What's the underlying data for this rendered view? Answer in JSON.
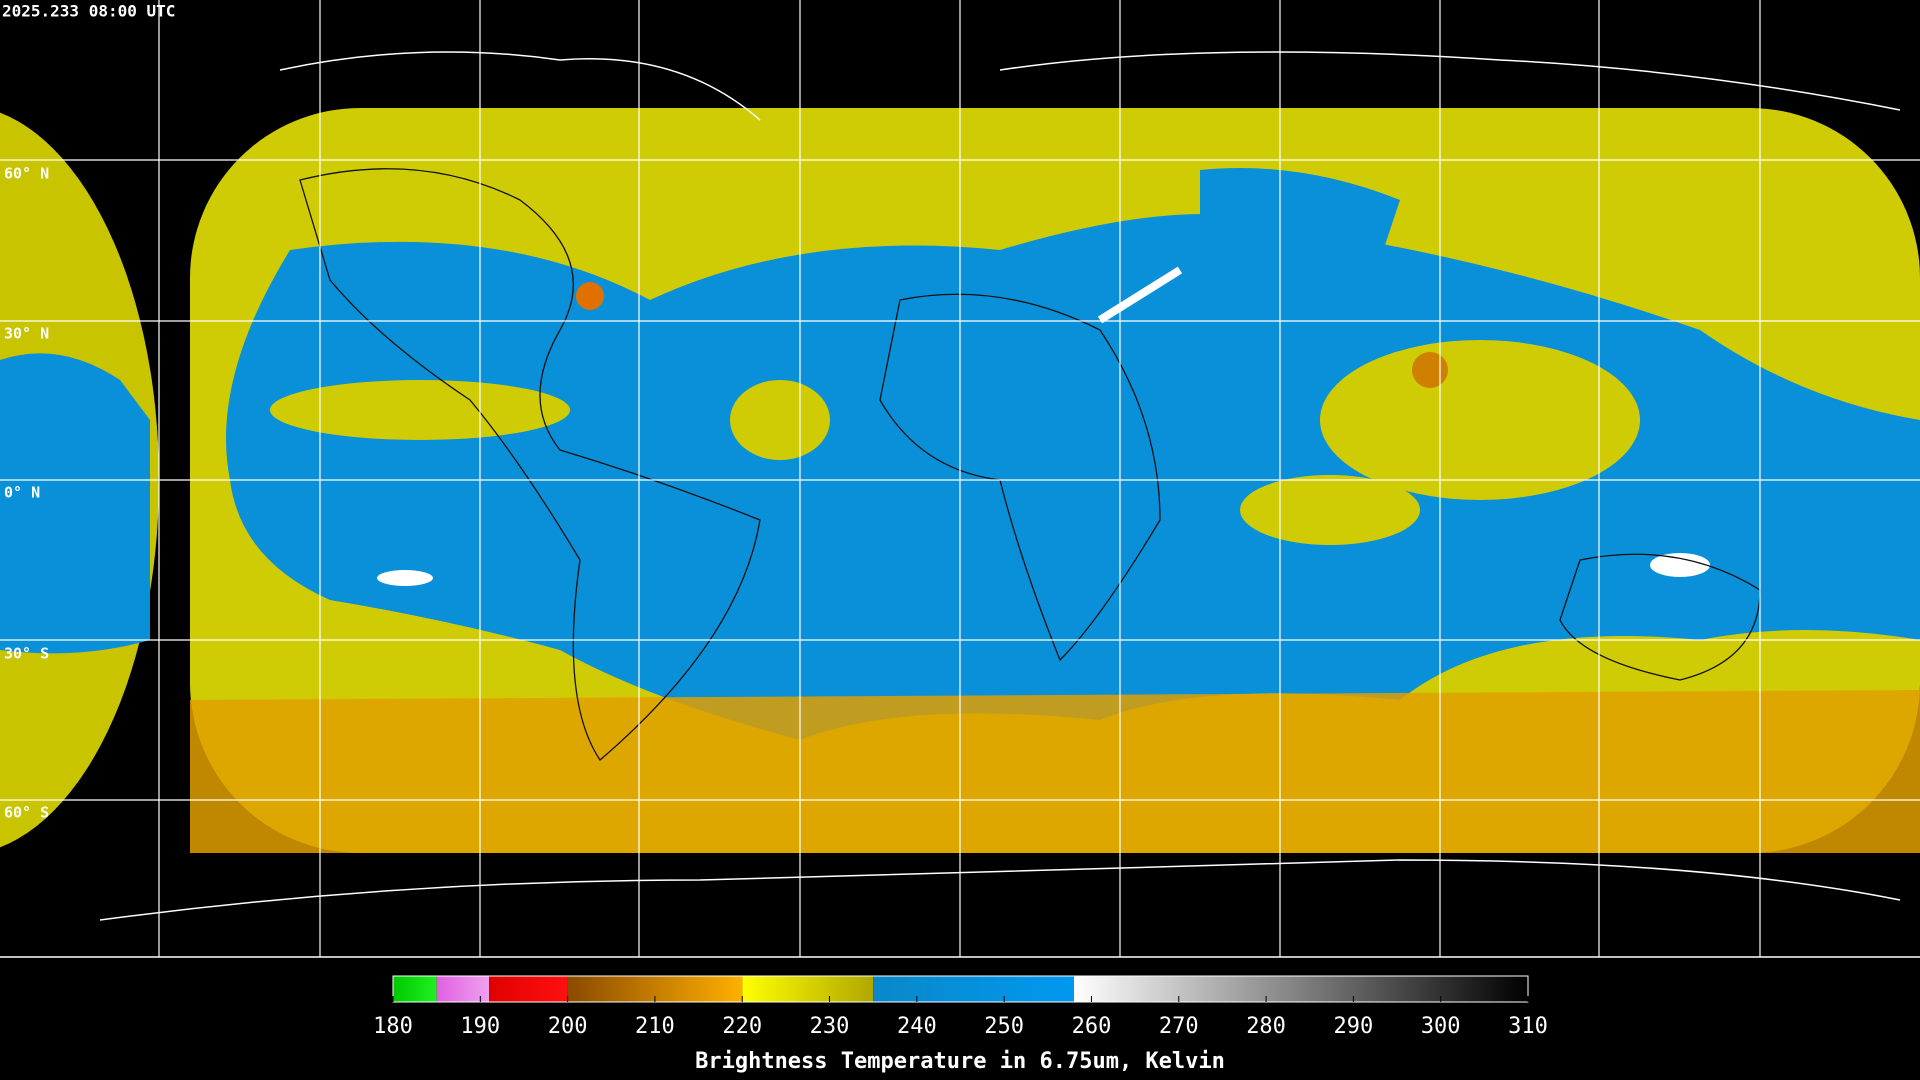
{
  "header": {
    "title": "2025.233 08:00 UTC"
  },
  "map": {
    "latitude_labels": [
      "60° N",
      "30° N",
      "0° N",
      "30° S",
      "60° S"
    ]
  },
  "colorbar": {
    "range": [
      180,
      310
    ],
    "ticks": [
      180,
      190,
      200,
      210,
      220,
      230,
      240,
      250,
      260,
      270,
      280,
      290,
      300,
      310
    ],
    "segments": [
      {
        "from": 180,
        "to": 185,
        "colors": [
          "#00c800",
          "#20f020"
        ]
      },
      {
        "from": 185,
        "to": 191,
        "colors": [
          "#e060e0",
          "#f0a0f0"
        ]
      },
      {
        "from": 191,
        "to": 200,
        "colors": [
          "#e00000",
          "#ff1010"
        ]
      },
      {
        "from": 200,
        "to": 220,
        "colors": [
          "#8a4a00",
          "#ffb000"
        ]
      },
      {
        "from": 220,
        "to": 235,
        "colors": [
          "#ffff00",
          "#b0a800"
        ]
      },
      {
        "from": 235,
        "to": 258,
        "colors": [
          "#0a88c8",
          "#0098f0"
        ]
      },
      {
        "from": 258,
        "to": 310,
        "colors": [
          "#ffffff",
          "#000000"
        ]
      }
    ],
    "label": "Brightness Temperature in 6.75um, Kelvin"
  }
}
